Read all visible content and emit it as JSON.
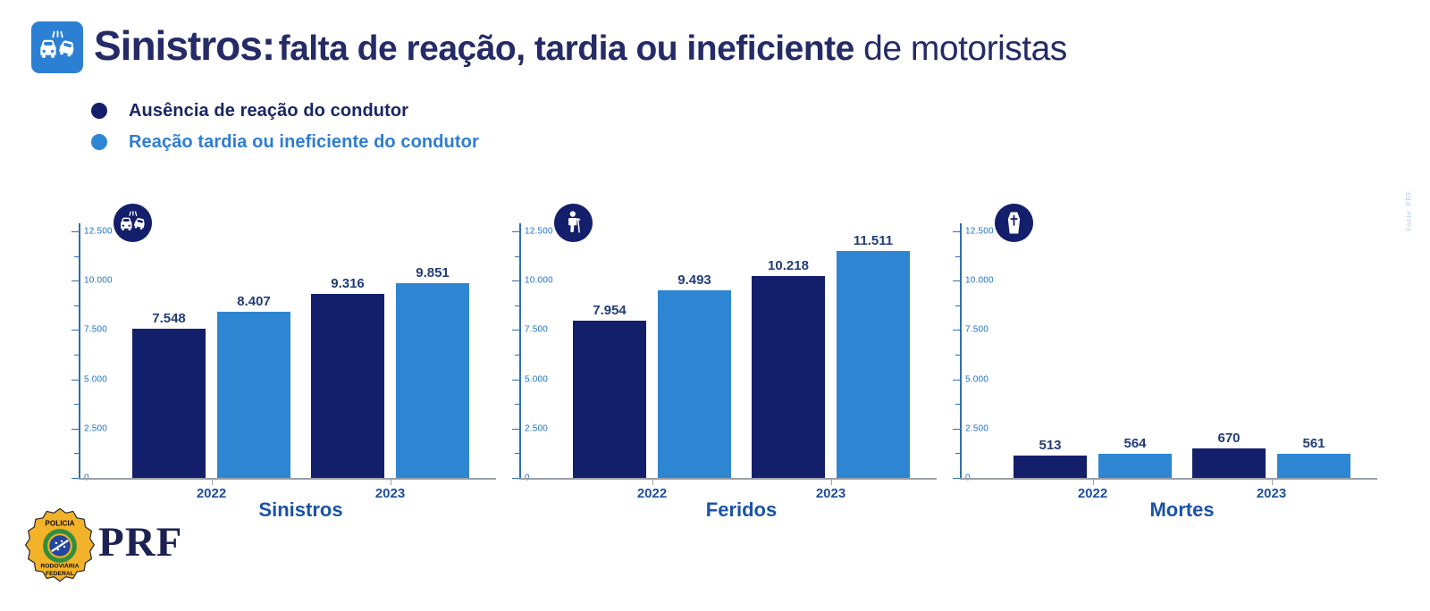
{
  "header": {
    "title_strong": "Sinistros:",
    "title_bold": "falta de reação, tardia ou ineficiente",
    "title_regular": "de motoristas",
    "icon": "car-crash-icon"
  },
  "legend": [
    {
      "label": "Ausência de reação do condutor",
      "color": "#141f6b",
      "text_color": "#1b2666"
    },
    {
      "label": "Reação tardia ou ineficiente do condutor",
      "color": "#2e86d3",
      "text_color": "#2d7dd2"
    }
  ],
  "chart_data": {
    "type": "bar",
    "categories": [
      "2022",
      "2023"
    ],
    "series_names": [
      "Ausência de reação do condutor",
      "Reação tardia ou ineficiente do condutor"
    ],
    "series_colors": [
      "#141f6b",
      "#2e86d3"
    ],
    "y_axis": {
      "ylim": [
        0,
        12500
      ],
      "major_tick_step": 2500,
      "minor_tick_step": 1250,
      "tick_labels": [
        "0",
        "2.500",
        "5.000",
        "7.500",
        "10.000",
        "12.500"
      ],
      "grid": false
    },
    "legend_position": "top-left",
    "charts": [
      {
        "title": "Sinistros",
        "icon": "car-crash-icon",
        "series": [
          {
            "name": "Ausência de reação do condutor",
            "values": [
              7548,
              9316
            ],
            "labels": [
              "7.548",
              "9.316"
            ]
          },
          {
            "name": "Reação tardia ou ineficiente do condutor",
            "values": [
              8407,
              9851
            ],
            "labels": [
              "8.407",
              "9.851"
            ]
          }
        ],
        "bar_display_scale": 1
      },
      {
        "title": "Feridos",
        "icon": "injured-person-icon",
        "series": [
          {
            "name": "Ausência de reação do condutor",
            "values": [
              7954,
              10218
            ],
            "labels": [
              "7.954",
              "10.218"
            ]
          },
          {
            "name": "Reação tardia ou ineficiente do condutor",
            "values": [
              9493,
              11511
            ],
            "labels": [
              "9.493",
              "11.511"
            ]
          }
        ],
        "bar_display_scale": 1
      },
      {
        "title": "Mortes",
        "icon": "coffin-icon",
        "series": [
          {
            "name": "Ausência de reação do condutor",
            "values": [
              513,
              670
            ],
            "labels": [
              "513",
              "670"
            ]
          },
          {
            "name": "Reação tardia ou ineficiente do condutor",
            "values": [
              564,
              561
            ],
            "labels": [
              "564",
              "561"
            ]
          }
        ],
        "bar_display_scale": 2.2
      }
    ]
  },
  "footer": {
    "logo_text": "PRF",
    "badge_text_top": "POLICIA",
    "badge_text_middle": "RODOVIÁRIA",
    "badge_text_bottom": "FEDERAL"
  },
  "source_note": "Fonte: PRF",
  "colors": {
    "dark_navy": "#141f6b",
    "light_blue": "#2e86d3",
    "header_icon_bg": "#2b80d4",
    "title_navy": "#242b66",
    "axis_blue": "#2e6fb0",
    "tick_label_blue": "#2273c2",
    "value_label_navy": "#223d78",
    "year_label_blue": "#1d4f9e",
    "chart_title_blue": "#1a53a6",
    "baseline_gray": "#9aa0a8"
  }
}
